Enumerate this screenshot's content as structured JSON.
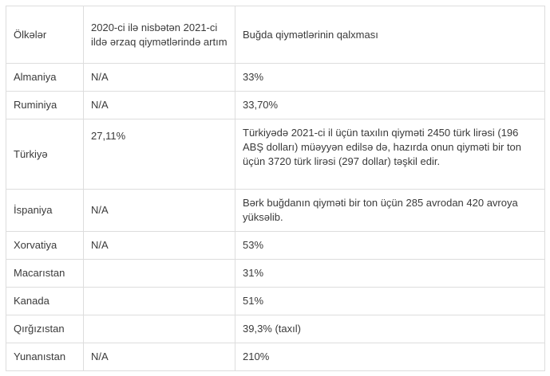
{
  "headers": {
    "country": "Ölkələr",
    "food_price": "2020-ci ilə nisbətən 2021-ci ildə ərzaq qiymətlərində artım",
    "wheat_price": "Buğda qiymətlərinin qalxması"
  },
  "rows": [
    {
      "country": "Almaniya",
      "food": "N/A",
      "wheat": "33%"
    },
    {
      "country": "Ruminiya",
      "food": "N/A",
      "wheat": "33,70%"
    },
    {
      "country": "Türkiyə",
      "food": "27,11%",
      "wheat": "Türkiyədə 2021-ci il üçün taxılın qiyməti 2450 türk lirəsi (196 ABŞ dolları) müəyyən edilsə də, hazırda onun qiyməti bir ton üçün 3720 türk lirəsi (297 dollar) təşkil edir."
    },
    {
      "country": "İspaniya",
      "food": "N/A",
      "wheat": "Bərk buğdanın qiyməti bir ton üçün 285 avrodan 420 avroya yüksəlib."
    },
    {
      "country": "Xorvatiya",
      "food": "N/A",
      "wheat": "53%"
    },
    {
      "country": "Macarıstan",
      "food": "",
      "wheat": "31%"
    },
    {
      "country": "Kanada",
      "food": "",
      "wheat": "51%"
    },
    {
      "country": "Qırğızıstan",
      "food": "",
      "wheat": "39,3% (taxıl)"
    },
    {
      "country": "Yunanıstan",
      "food": "N/A",
      "wheat": "210%"
    }
  ]
}
